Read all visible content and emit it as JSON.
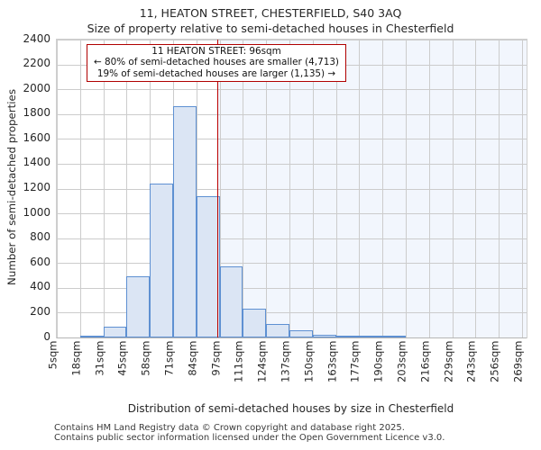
{
  "title": "11, HEATON STREET, CHESTERFIELD, S40 3AQ",
  "subtitle": "Size of property relative to semi-detached houses in Chesterfield",
  "annotation": {
    "line1": "11 HEATON STREET: 96sqm",
    "line2": "← 80% of semi-detached houses are smaller (4,713)",
    "line3": "19% of semi-detached houses are larger (1,135) →"
  },
  "chart_data": {
    "type": "bar",
    "title": "Size of property relative to semi-detached houses in Chesterfield",
    "xlabel": "Distribution of semi-detached houses by size in Chesterfield",
    "ylabel": "Number of semi-detached properties",
    "x_tick_labels": [
      "5sqm",
      "18sqm",
      "31sqm",
      "45sqm",
      "58sqm",
      "71sqm",
      "84sqm",
      "97sqm",
      "111sqm",
      "124sqm",
      "137sqm",
      "150sqm",
      "163sqm",
      "177sqm",
      "190sqm",
      "203sqm",
      "216sqm",
      "229sqm",
      "243sqm",
      "256sqm",
      "269sqm"
    ],
    "bin_edges_sqm": [
      5,
      18,
      31,
      45,
      58,
      71,
      84,
      97,
      111,
      124,
      137,
      150,
      163,
      177,
      190,
      203,
      216,
      229,
      243,
      256,
      269
    ],
    "values": [
      0,
      10,
      85,
      490,
      1240,
      1865,
      1140,
      575,
      235,
      110,
      55,
      25,
      12,
      6,
      3,
      0,
      0,
      0,
      0,
      0
    ],
    "ylim": [
      0,
      2400
    ],
    "ytick_step": 200,
    "marker_value_sqm": 96,
    "grid": true,
    "legend": "none"
  },
  "footer": {
    "line1": "Contains HM Land Registry data © Crown copyright and database right 2025.",
    "line2": "Contains public sector information licensed under the Open Government Licence v3.0."
  },
  "colors": {
    "bar_fill": "#dbe5f4",
    "bar_border": "#5e90d2",
    "marker_line": "#bb0000",
    "annotation_border": "#b00000",
    "shade_right_of_marker": "#f2f6fd",
    "gridline": "#cccccc",
    "footer_text": "#3a3a3a",
    "text": "#262626"
  }
}
